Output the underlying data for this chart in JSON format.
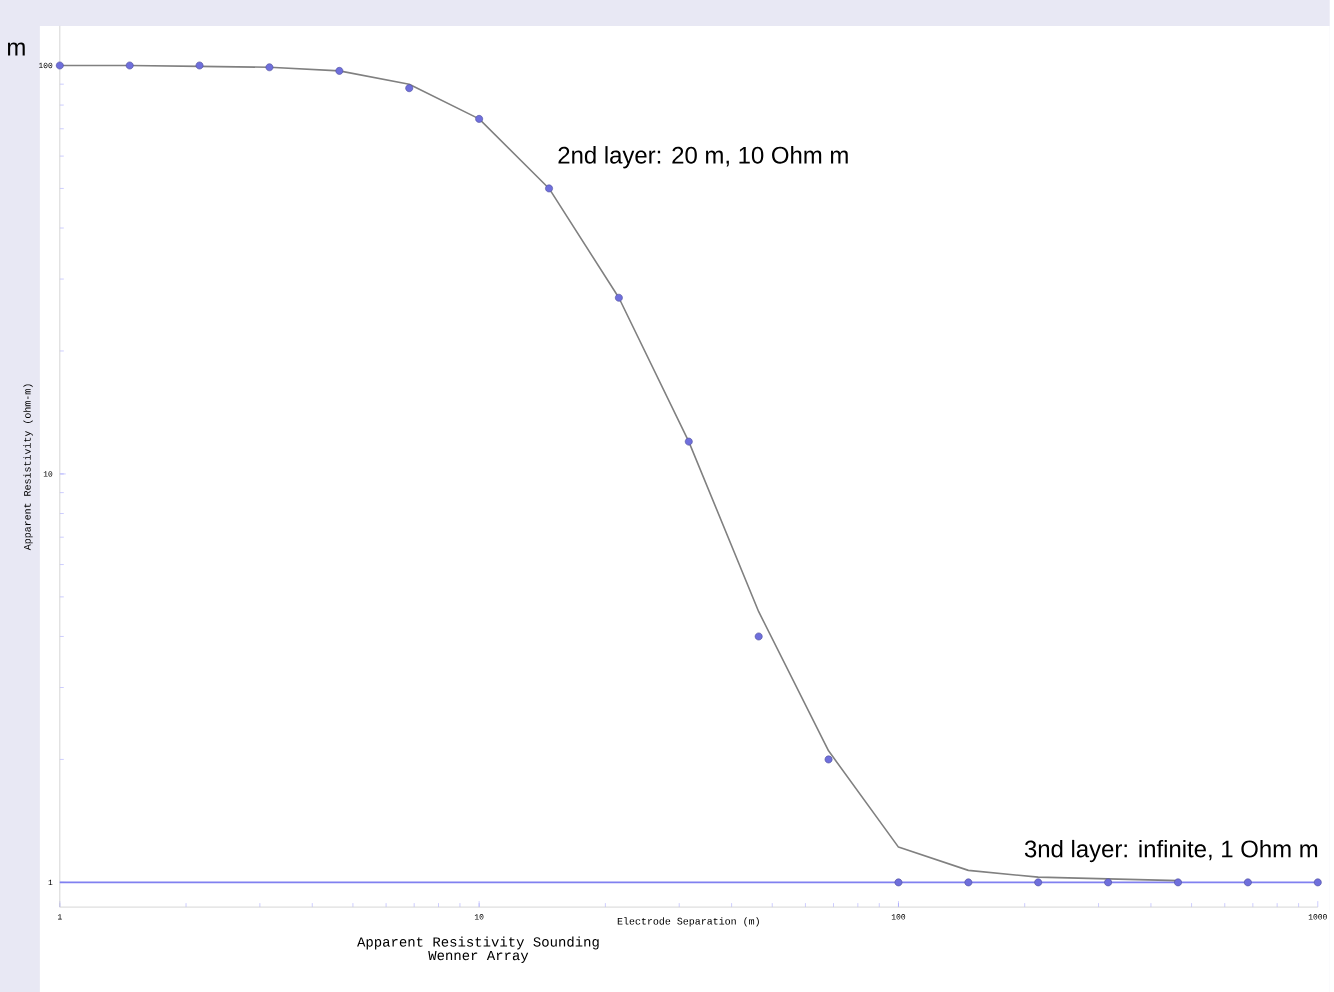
{
  "chart_data": {
    "type": "line",
    "title": "Apparent Resistivity Sounding",
    "subtitle": "Wenner Array",
    "xlabel": "Electrode Separation (m)",
    "ylabel": "Apparent Resistivity (ohm-m)",
    "annotations": [
      "2nd layer: 20 m, 10 Ohm m",
      "3nd layer: infinite, 1 Ohm m",
      "m"
    ],
    "x": [
      1,
      1.468,
      2.154,
      3.162,
      4.642,
      6.813,
      10,
      14.68,
      21.54,
      31.62,
      46.42,
      68.13,
      100,
      146.8,
      215.4,
      316.2,
      464.2,
      681.3,
      1000
    ],
    "series": [
      {
        "color": "#808080",
        "marker": "none",
        "line_style": "solid",
        "values": [
          100,
          100,
          99.5,
          99,
          97,
          90,
          74,
          50,
          27,
          12,
          4.6,
          2.1,
          1.22,
          1.07,
          1.03,
          1.02,
          1.01,
          null,
          null
        ]
      },
      {
        "type": "scatter",
        "color": "#6f6fdc",
        "marker": "circle",
        "values": [
          100,
          100,
          100,
          99,
          97,
          88,
          74,
          50,
          27,
          12,
          4.0,
          2.0,
          1,
          1,
          1,
          1,
          1,
          1,
          1
        ]
      }
    ],
    "ref_lines": [
      {
        "axis": "y",
        "value": 1,
        "color": "#8080f0"
      }
    ],
    "log": "xy",
    "xlim": [
      1,
      1000
    ],
    "ylim": [
      0.87,
      125
    ],
    "xticks": [
      1,
      10,
      100,
      1000
    ],
    "yticks": [
      1,
      10,
      100
    ],
    "grid": false
  }
}
